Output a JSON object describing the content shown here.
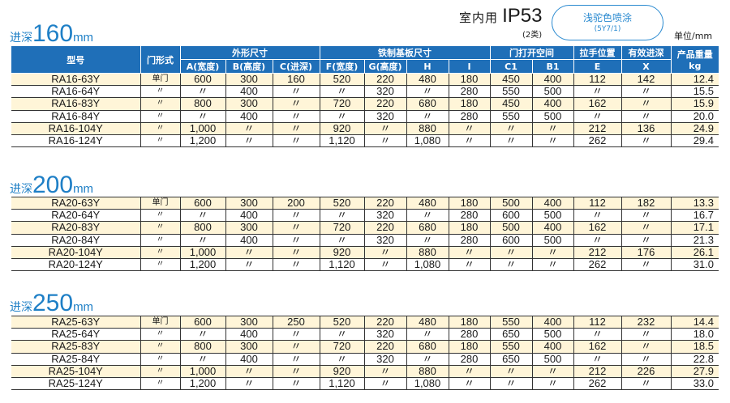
{
  "header": {
    "indoor": "室内用",
    "ip": "IP53",
    "ip_class": "(2类)",
    "paint": "浅驼色喷涂",
    "paint_code": "(5Y7/1)",
    "unit": "单位/mm"
  },
  "columns": {
    "model": "型号",
    "door": "门形式",
    "outer": "外形尺寸",
    "plate": "铁制基板尺寸",
    "opening": "门打开空间",
    "handle": "拉手位置",
    "effective": "有效进深",
    "weight": "产品重量",
    "weight_unit": "kg",
    "A": "A(宽度)",
    "B": "B(高度)",
    "C": "C(进深)",
    "F": "F(宽度)",
    "G": "G(高度)",
    "H": "H",
    "I": "I",
    "C1": "C1",
    "B1": "B1",
    "E": "E",
    "X": "X"
  },
  "sections": [
    {
      "prefix": "进深",
      "depth": "160",
      "mm": "mm",
      "rows": [
        [
          "RA16-63Y",
          "单门",
          "600",
          "300",
          "160",
          "520",
          "220",
          "480",
          "180",
          "450",
          "400",
          "112",
          "142",
          "12.4"
        ],
        [
          "RA16-64Y",
          "〃",
          "〃",
          "400",
          "〃",
          "〃",
          "320",
          "〃",
          "280",
          "550",
          "500",
          "〃",
          "〃",
          "15.5"
        ],
        [
          "RA16-83Y",
          "〃",
          "800",
          "300",
          "〃",
          "720",
          "220",
          "680",
          "180",
          "450",
          "400",
          "162",
          "〃",
          "15.9"
        ],
        [
          "RA16-84Y",
          "〃",
          "〃",
          "400",
          "〃",
          "〃",
          "320",
          "〃",
          "280",
          "550",
          "500",
          "〃",
          "〃",
          "20.0"
        ],
        [
          "RA16-104Y",
          "〃",
          "1,000",
          "〃",
          "〃",
          "920",
          "〃",
          "880",
          "〃",
          "〃",
          "〃",
          "212",
          "136",
          "24.9"
        ],
        [
          "RA16-124Y",
          "〃",
          "1,200",
          "〃",
          "〃",
          "1,120",
          "〃",
          "1,080",
          "〃",
          "〃",
          "〃",
          "262",
          "〃",
          "29.4"
        ]
      ]
    },
    {
      "prefix": "进深",
      "depth": "200",
      "mm": "mm",
      "rows": [
        [
          "RA20-63Y",
          "单门",
          "600",
          "300",
          "200",
          "520",
          "220",
          "480",
          "180",
          "500",
          "400",
          "112",
          "182",
          "13.3"
        ],
        [
          "RA20-64Y",
          "〃",
          "〃",
          "400",
          "〃",
          "〃",
          "320",
          "〃",
          "280",
          "600",
          "500",
          "〃",
          "〃",
          "16.7"
        ],
        [
          "RA20-83Y",
          "〃",
          "800",
          "300",
          "〃",
          "720",
          "220",
          "680",
          "180",
          "500",
          "400",
          "162",
          "〃",
          "17.1"
        ],
        [
          "RA20-84Y",
          "〃",
          "〃",
          "400",
          "〃",
          "〃",
          "320",
          "〃",
          "280",
          "600",
          "500",
          "〃",
          "〃",
          "21.3"
        ],
        [
          "RA20-104Y",
          "〃",
          "1,000",
          "〃",
          "〃",
          "920",
          "〃",
          "880",
          "〃",
          "〃",
          "〃",
          "212",
          "176",
          "26.1"
        ],
        [
          "RA20-124Y",
          "〃",
          "1,200",
          "〃",
          "〃",
          "1,120",
          "〃",
          "1,080",
          "〃",
          "〃",
          "〃",
          "262",
          "〃",
          "31.0"
        ]
      ]
    },
    {
      "prefix": "进深",
      "depth": "250",
      "mm": "mm",
      "rows": [
        [
          "RA25-63Y",
          "单门",
          "600",
          "300",
          "250",
          "520",
          "220",
          "480",
          "180",
          "550",
          "400",
          "112",
          "232",
          "14.4"
        ],
        [
          "RA25-64Y",
          "〃",
          "〃",
          "400",
          "〃",
          "〃",
          "320",
          "〃",
          "280",
          "650",
          "500",
          "〃",
          "〃",
          "18.0"
        ],
        [
          "RA25-83Y",
          "〃",
          "800",
          "300",
          "〃",
          "720",
          "220",
          "680",
          "180",
          "550",
          "400",
          "162",
          "〃",
          "18.5"
        ],
        [
          "RA25-84Y",
          "〃",
          "〃",
          "400",
          "〃",
          "〃",
          "320",
          "〃",
          "280",
          "650",
          "500",
          "〃",
          "〃",
          "22.8"
        ],
        [
          "RA25-104Y",
          "〃",
          "1,000",
          "〃",
          "〃",
          "920",
          "〃",
          "880",
          "〃",
          "〃",
          "〃",
          "212",
          "226",
          "27.9"
        ],
        [
          "RA25-124Y",
          "〃",
          "1,200",
          "〃",
          "〃",
          "1,120",
          "〃",
          "1,080",
          "〃",
          "〃",
          "〃",
          "262",
          "〃",
          "33.0"
        ]
      ]
    }
  ]
}
